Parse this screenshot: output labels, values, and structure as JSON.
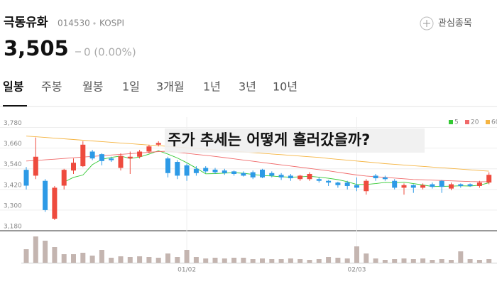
{
  "header": {
    "name": "극동유화",
    "code": "014530",
    "market": "KOSPI",
    "watch": "관심종목",
    "price": "3,505",
    "change": "0 (0.00%)"
  },
  "tabs": [
    "일봉",
    "주봉",
    "월봉",
    "1일",
    "3개월",
    "1년",
    "3년",
    "10년"
  ],
  "chart_data": {
    "type": "candlestick",
    "annotation": "주가 추세는 어떻게 흘러갔을까?",
    "categories": [
      null,
      null,
      null,
      null,
      null,
      null,
      null,
      null,
      null,
      null,
      null,
      null,
      null,
      null,
      null,
      null,
      null,
      "01/02",
      null,
      null,
      null,
      null,
      null,
      null,
      null,
      null,
      null,
      null,
      null,
      null,
      null,
      null,
      null,
      null,
      null,
      "02/03",
      null,
      null,
      null,
      null,
      null,
      null,
      null,
      null,
      null,
      null,
      null,
      null,
      null,
      null
    ],
    "open": [
      3534,
      3500,
      3470,
      3250,
      3442,
      3530,
      3555,
      3640,
      3625,
      3600,
      3545,
      3600,
      3610,
      3640,
      3680,
      3600,
      3580,
      3560,
      3540,
      3545,
      3535,
      3530,
      3525,
      3515,
      3520,
      3535,
      3515,
      3505,
      3500,
      3480,
      3480,
      3480,
      3470,
      3460,
      3460,
      3445,
      3410,
      3500,
      3490,
      3470,
      3430,
      3445,
      3430,
      3450,
      3470,
      3425,
      3450,
      3450,
      3440,
      3460
    ],
    "high": [
      3550,
      3722,
      3480,
      3440,
      3540,
      3600,
      3700,
      3650,
      3630,
      3610,
      3630,
      3640,
      3650,
      3680,
      3700,
      3610,
      3590,
      3570,
      3555,
      3555,
      3545,
      3540,
      3530,
      3525,
      3530,
      3540,
      3525,
      3515,
      3510,
      3505,
      3520,
      3490,
      3475,
      3465,
      3470,
      3490,
      3480,
      3510,
      3500,
      3480,
      3455,
      3450,
      3455,
      3460,
      3475,
      3460,
      3455,
      3455,
      3470,
      3520
    ],
    "low": [
      3420,
      3480,
      3290,
      3242,
      3420,
      3510,
      3550,
      3590,
      3560,
      3580,
      3530,
      3510,
      3600,
      3630,
      3670,
      3490,
      3480,
      3470,
      3500,
      3515,
      3510,
      3505,
      3500,
      3495,
      3480,
      3485,
      3490,
      3475,
      3470,
      3470,
      3470,
      3460,
      3440,
      3430,
      3420,
      3410,
      3390,
      3470,
      3470,
      3420,
      3390,
      3400,
      3420,
      3425,
      3400,
      3415,
      3430,
      3435,
      3430,
      3450
    ],
    "close": [
      3442,
      3610,
      3300,
      3430,
      3534,
      3575,
      3680,
      3600,
      3585,
      3590,
      3615,
      3610,
      3640,
      3670,
      3690,
      3515,
      3500,
      3500,
      3515,
      3525,
      3520,
      3515,
      3510,
      3500,
      3490,
      3490,
      3500,
      3490,
      3485,
      3500,
      3510,
      3470,
      3460,
      3445,
      3440,
      3430,
      3470,
      3485,
      3480,
      3430,
      3445,
      3430,
      3445,
      3435,
      3435,
      3450,
      3440,
      3440,
      3460,
      3505
    ],
    "up_color": "#ee4b3e",
    "down_color": "#2d9ae6",
    "series": [
      {
        "name": "5",
        "color": "#34c934",
        "values": [
          null,
          null,
          null,
          null,
          3463,
          3490,
          3504,
          3564,
          3595,
          3606,
          3614,
          3600,
          3608,
          3625,
          3645,
          3625,
          3603,
          3575,
          3544,
          3511,
          3512,
          3515,
          3517,
          3514,
          3507,
          3501,
          3498,
          3494,
          3491,
          3493,
          3497,
          3491,
          3485,
          3477,
          3465,
          3449,
          3449,
          3454,
          3461,
          3459,
          3462,
          3454,
          3446,
          3437,
          3438,
          3439,
          3441,
          3440,
          3445,
          3459
        ]
      },
      {
        "name": "20",
        "color": "#f06a6a",
        "values": [
          3585,
          3588,
          3592,
          3596,
          3600,
          3604,
          3608,
          3612,
          3616,
          3620,
          3624,
          3628,
          3632,
          3636,
          3640,
          3642,
          3636,
          3630,
          3624,
          3618,
          3612,
          3605,
          3598,
          3591,
          3584,
          3577,
          3570,
          3563,
          3556,
          3549,
          3542,
          3535,
          3528,
          3520,
          3512,
          3504,
          3498,
          3494,
          3490,
          3486,
          3482,
          3478,
          3476,
          3474,
          3472,
          3470,
          3468,
          3466,
          3465,
          3465
        ]
      },
      {
        "name": "60",
        "color": "#f5b441",
        "values": [
          3730,
          3726,
          3722,
          3718,
          3714,
          3710,
          3706,
          3702,
          3698,
          3694,
          3690,
          3686,
          3682,
          3678,
          3674,
          3670,
          3666,
          3662,
          3658,
          3654,
          3650,
          3646,
          3642,
          3638,
          3634,
          3630,
          3626,
          3622,
          3618,
          3614,
          3610,
          3606,
          3600,
          3595,
          3590,
          3585,
          3580,
          3575,
          3570,
          3566,
          3562,
          3558,
          3554,
          3550,
          3546,
          3542,
          3538,
          3534,
          3530,
          3526
        ]
      }
    ],
    "volume": {
      "color": "#c4b5b0",
      "ylim": [
        0,
        40
      ],
      "values": [
        19,
        37,
        31,
        22,
        12,
        12,
        14,
        10,
        18,
        7,
        9,
        8,
        9,
        8,
        7,
        13,
        8,
        18,
        8,
        6,
        7,
        6,
        7,
        7,
        5,
        6,
        5,
        5,
        6,
        5,
        4,
        5,
        8,
        7,
        6,
        23,
        13,
        6,
        4,
        5,
        6,
        5,
        6,
        4,
        5,
        4,
        16,
        5,
        4,
        5
      ]
    },
    "ylim": [
      3180,
      3840
    ],
    "yticks": [
      {
        "value": 3180,
        "label": "3,180"
      },
      {
        "value": 3300,
        "label": "3,300"
      },
      {
        "value": 3420,
        "label": "3,420"
      },
      {
        "value": 3540,
        "label": "3,540"
      },
      {
        "value": 3660,
        "label": "3,660"
      },
      {
        "value": 3780,
        "label": "3,780"
      }
    ],
    "grid": true
  }
}
